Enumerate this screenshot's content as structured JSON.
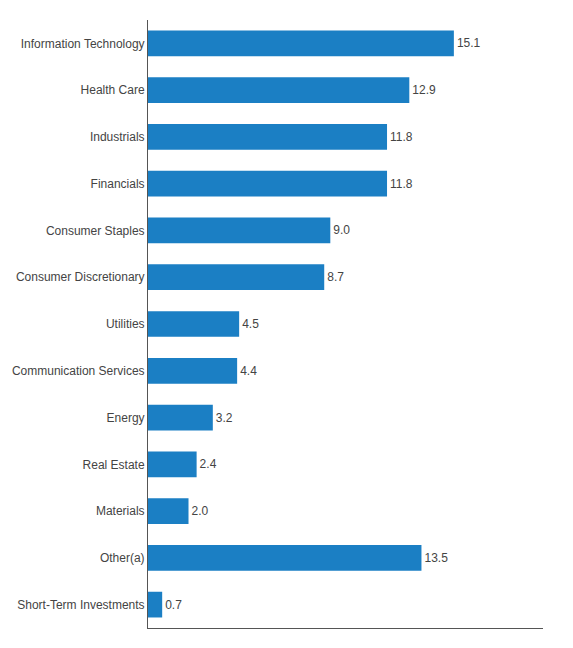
{
  "chart_data": {
    "type": "bar",
    "orientation": "horizontal",
    "categories": [
      "Information Technology",
      "Health Care",
      "Industrials",
      "Financials",
      "Consumer Staples",
      "Consumer Discretionary",
      "Utilities",
      "Communication Services",
      "Energy",
      "Real Estate",
      "Materials",
      "Other(a)",
      "Short-Term Investments"
    ],
    "values": [
      15.1,
      12.9,
      11.8,
      11.8,
      9.0,
      8.7,
      4.5,
      4.4,
      3.2,
      2.4,
      2.0,
      13.5,
      0.7
    ],
    "value_labels": [
      "15.1",
      "12.9",
      "11.8",
      "11.8",
      "9.0",
      "8.7",
      "4.5",
      "4.4",
      "3.2",
      "2.4",
      "2.0",
      "13.5",
      "0.7"
    ],
    "data_labels": true,
    "color": "#1b7fc4",
    "xlim": [
      0,
      19.5
    ],
    "grid": false,
    "tick_labels": "y"
  }
}
